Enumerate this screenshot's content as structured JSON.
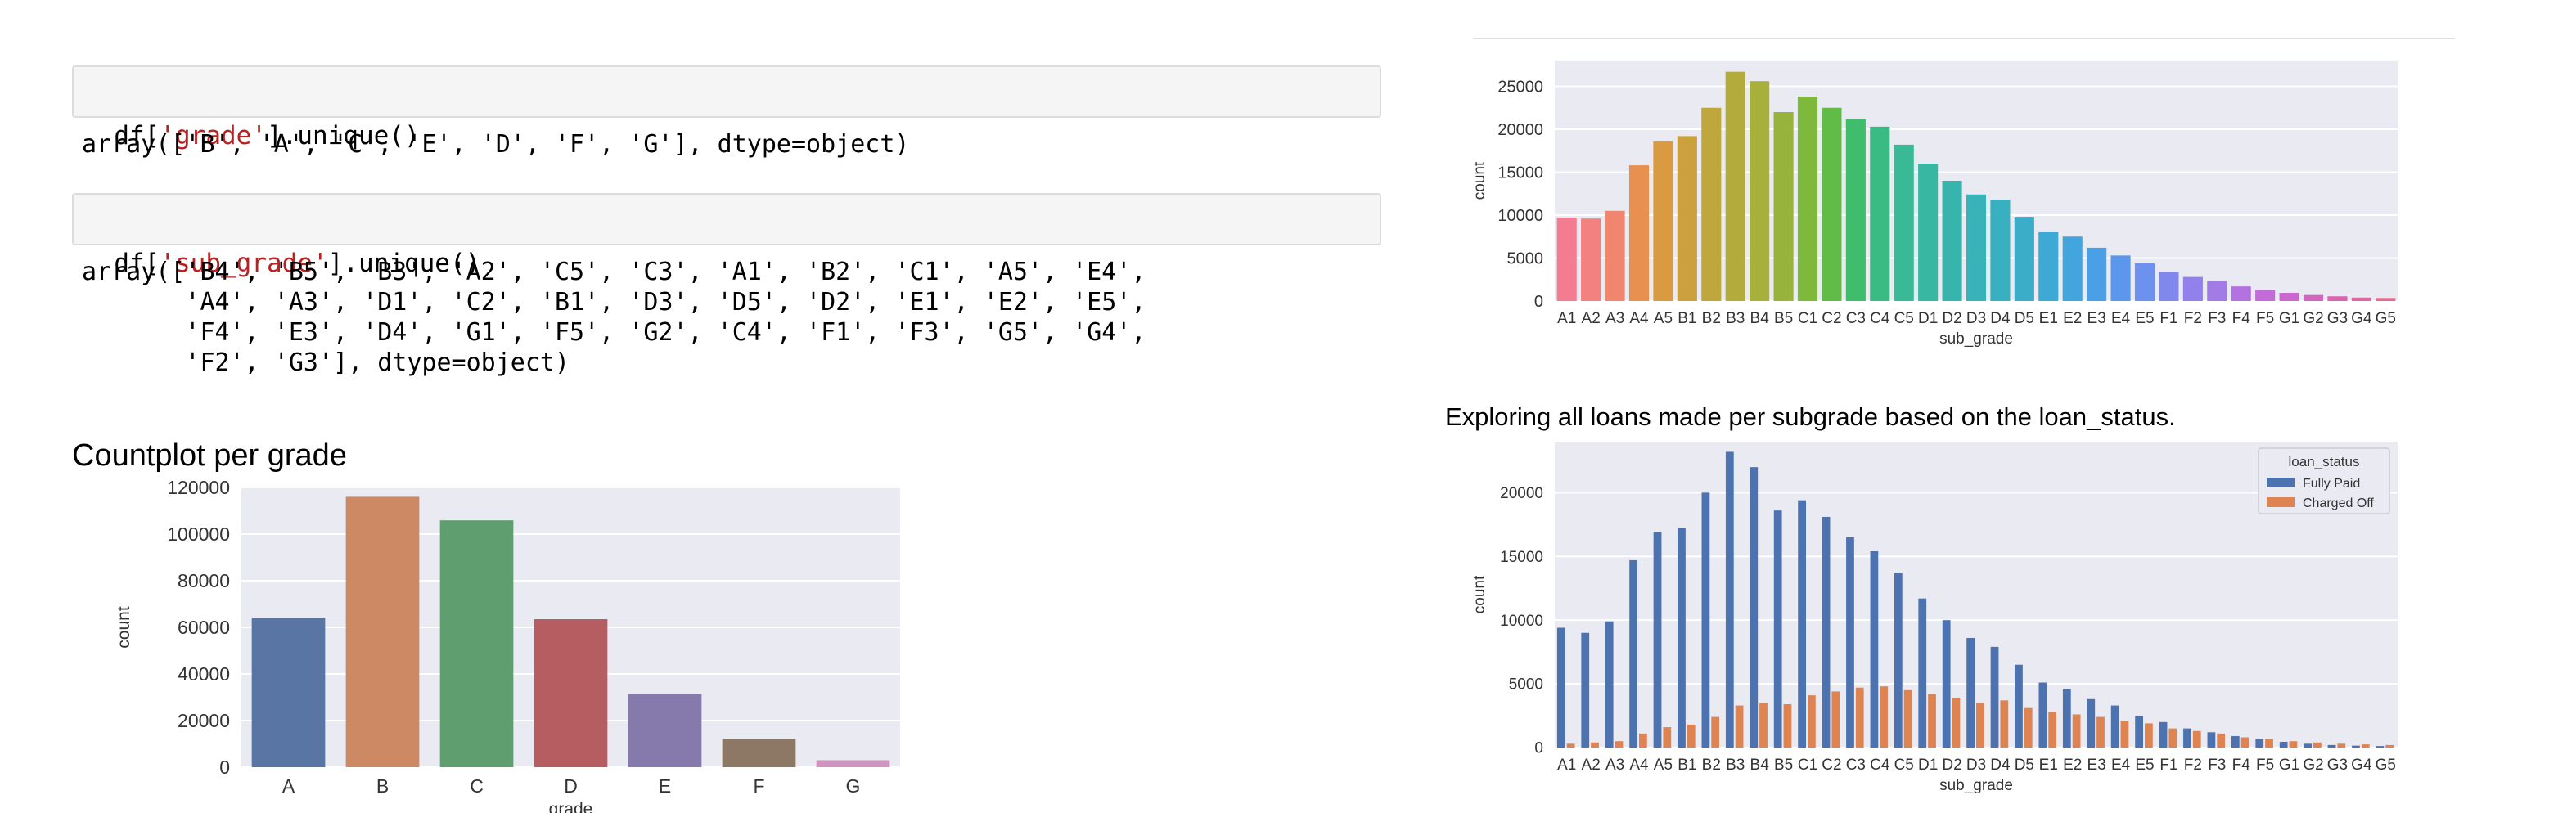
{
  "cells": {
    "grade_unique": {
      "code_prefix": "df[",
      "code_string": "'grade'",
      "code_suffix": "].unique()",
      "output": "array(['B', 'A', 'C', 'E', 'D', 'F', 'G'], dtype=object)"
    },
    "subgrade_unique": {
      "code_prefix": "df[",
      "code_string": "'sub_grade'",
      "code_suffix": "].unique()",
      "output": "array(['B4', 'B5', 'B3', 'A2', 'C5', 'C3', 'A1', 'B2', 'C1', 'A5', 'E4',\n       'A4', 'A3', 'D1', 'C2', 'B1', 'D3', 'D5', 'D2', 'E1', 'E2', 'E5',\n       'F4', 'E3', 'D4', 'G1', 'F5', 'G2', 'C4', 'F1', 'F3', 'G5', 'G4',\n       'F2', 'G3'], dtype=object)"
    }
  },
  "headings": {
    "countplot_grade": "Countplot per grade",
    "subgrade_status": "Exploring all loans made per subgrade based on the loan_status."
  },
  "chart_data": [
    {
      "id": "grade",
      "type": "bar",
      "title": "",
      "xlabel": "grade",
      "ylabel": "count",
      "categories": [
        "A",
        "B",
        "C",
        "D",
        "E",
        "F",
        "G"
      ],
      "values": [
        64200,
        116000,
        105900,
        63500,
        31500,
        12000,
        3000
      ],
      "colors": [
        "#5975a4",
        "#cc8963",
        "#5f9e6e",
        "#b55d60",
        "#857aab",
        "#8d7866",
        "#d095bf"
      ],
      "ylim": [
        0,
        120000
      ],
      "yticks": [
        0,
        20000,
        40000,
        60000,
        80000,
        100000,
        120000
      ],
      "grid": true,
      "background": "#eaeaf2"
    },
    {
      "id": "subgrade",
      "type": "bar",
      "title": "",
      "xlabel": "sub_grade",
      "ylabel": "count",
      "categories": [
        "A1",
        "A2",
        "A3",
        "A4",
        "A5",
        "B1",
        "B2",
        "B3",
        "B4",
        "B5",
        "C1",
        "C2",
        "C3",
        "C4",
        "C5",
        "D1",
        "D2",
        "D3",
        "D4",
        "D5",
        "E1",
        "E2",
        "E3",
        "E4",
        "E5",
        "F1",
        "F2",
        "F3",
        "F4",
        "F5",
        "G1",
        "G2",
        "G3",
        "G4",
        "G5"
      ],
      "values": [
        9700,
        9600,
        10500,
        15800,
        18600,
        19200,
        22500,
        26700,
        25600,
        22000,
        23800,
        22500,
        21200,
        20300,
        18200,
        16000,
        14000,
        12400,
        11800,
        9800,
        8000,
        7500,
        6200,
        5300,
        4400,
        3400,
        2800,
        2300,
        1700,
        1300,
        950,
        700,
        550,
        400,
        350
      ],
      "colors": [
        "#f37c90",
        "#f28180",
        "#f0866d",
        "#e7904f",
        "#d99a41",
        "#cba13f",
        "#bfa73d",
        "#b3ab3c",
        "#a7b03b",
        "#97b33c",
        "#7fb93c",
        "#61bb47",
        "#3fbc6c",
        "#3bbb84",
        "#3ab996",
        "#38b7a3",
        "#37b5ad",
        "#38b3b7",
        "#39b0bf",
        "#3badc9",
        "#3ea9d4",
        "#42a5dd",
        "#4a9fe6",
        "#5b98ec",
        "#6e90ee",
        "#8088ee",
        "#9281ec",
        "#a37be6",
        "#b273e0",
        "#c16cd9",
        "#cc68cd",
        "#d465bf",
        "#db63af",
        "#e1659f",
        "#e66a8e"
      ],
      "ylim": [
        0,
        28000
      ],
      "yticks": [
        0,
        5000,
        10000,
        15000,
        20000,
        25000
      ],
      "grid": true,
      "background": "#eaeaf2"
    },
    {
      "id": "subgrade_loan_status",
      "type": "bar",
      "title": "",
      "xlabel": "sub_grade",
      "ylabel": "count",
      "categories": [
        "A1",
        "A2",
        "A3",
        "A4",
        "A5",
        "B1",
        "B2",
        "B3",
        "B4",
        "B5",
        "C1",
        "C2",
        "C3",
        "C4",
        "C5",
        "D1",
        "D2",
        "D3",
        "D4",
        "D5",
        "E1",
        "E2",
        "E3",
        "E4",
        "E5",
        "F1",
        "F2",
        "F3",
        "F4",
        "F5",
        "G1",
        "G2",
        "G3",
        "G4",
        "G5"
      ],
      "series": [
        {
          "name": "Fully Paid",
          "color": "#4c72b0",
          "values": [
            9400,
            9000,
            9900,
            14700,
            16900,
            17200,
            20000,
            23200,
            22000,
            18600,
            19400,
            18100,
            16500,
            15400,
            13700,
            11700,
            10000,
            8600,
            7900,
            6500,
            5100,
            4600,
            3800,
            3300,
            2500,
            2000,
            1500,
            1200,
            900,
            650,
            450,
            300,
            200,
            150,
            120
          ]
        },
        {
          "name": "Charged Off",
          "color": "#dd8452",
          "values": [
            300,
            400,
            500,
            1100,
            1600,
            1800,
            2400,
            3300,
            3500,
            3400,
            4100,
            4400,
            4700,
            4800,
            4500,
            4200,
            3900,
            3500,
            3700,
            3100,
            2800,
            2600,
            2400,
            2100,
            1900,
            1500,
            1300,
            1100,
            800,
            650,
            500,
            400,
            300,
            250,
            200
          ]
        }
      ],
      "legend": {
        "title": "loan_status",
        "placement": "top-right"
      },
      "ylim": [
        0,
        24000
      ],
      "yticks": [
        0,
        5000,
        10000,
        15000,
        20000
      ],
      "grid": true,
      "background": "#eaeaf2"
    }
  ]
}
